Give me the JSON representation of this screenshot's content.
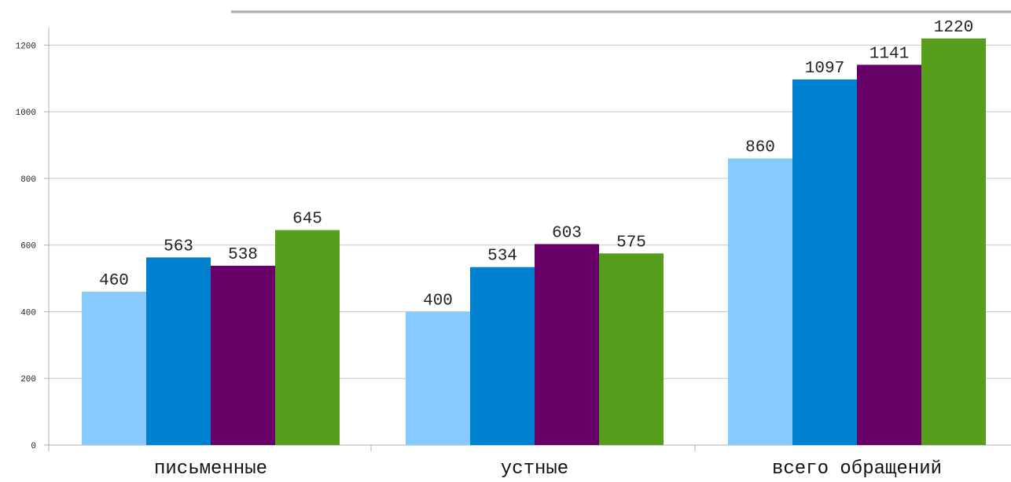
{
  "chart_data": {
    "type": "bar",
    "title": "",
    "xlabel": "",
    "ylabel": "",
    "ylim": [
      0,
      1300
    ],
    "yticks": [
      0,
      200,
      400,
      600,
      800,
      1000,
      1200
    ],
    "grid": true,
    "legend": "none",
    "categories": [
      "письменные",
      "устные",
      "всего обращений"
    ],
    "series": [
      {
        "color": "#87cafe",
        "values": [
          460,
          400,
          860
        ]
      },
      {
        "color": "#0081cf",
        "values": [
          563,
          534,
          1097
        ]
      },
      {
        "color": "#660066",
        "values": [
          538,
          603,
          1141
        ]
      },
      {
        "color": "#569e1b",
        "values": [
          645,
          575,
          1220
        ]
      }
    ],
    "colors": {
      "gridline": "#c6c6c6",
      "axis": "#b0b0b0",
      "top_rule": "#a9a9a9"
    }
  }
}
